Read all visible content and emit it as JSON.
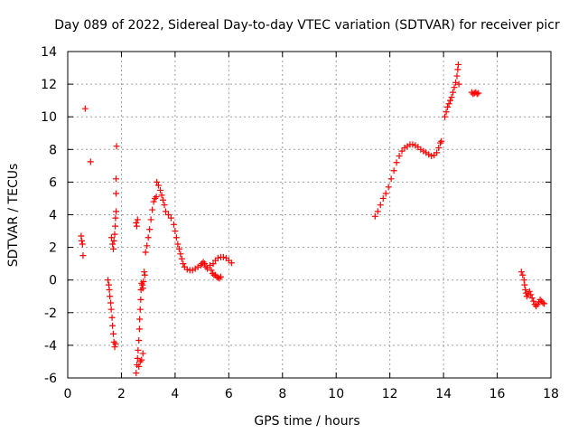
{
  "chart_data": {
    "type": "scatter",
    "title": "Day 089 of 2022, Sidereal Day-to-day VTEC variation (SDTVAR) for receiver picr",
    "xlabel": "GPS time / hours",
    "ylabel": "SDTVAR / TECUs",
    "xlim": [
      0,
      18
    ],
    "ylim": [
      -6,
      14
    ],
    "xticks": [
      0,
      2,
      4,
      6,
      8,
      10,
      12,
      14,
      16,
      18
    ],
    "yticks": [
      -6,
      -4,
      -2,
      0,
      2,
      4,
      6,
      8,
      10,
      12,
      14
    ],
    "grid": true,
    "marker": "+",
    "marker_color": "#ff0000",
    "series": [
      {
        "name": "SDTVAR",
        "points": [
          [
            0.5,
            2.7
          ],
          [
            0.52,
            2.4
          ],
          [
            0.55,
            2.2
          ],
          [
            0.57,
            1.5
          ],
          [
            0.65,
            10.5
          ],
          [
            0.85,
            7.25
          ],
          [
            1.5,
            0.0
          ],
          [
            1.53,
            -0.3
          ],
          [
            1.55,
            -0.6
          ],
          [
            1.57,
            -1.0
          ],
          [
            1.6,
            -1.4
          ],
          [
            1.62,
            -1.8
          ],
          [
            1.65,
            -2.3
          ],
          [
            1.67,
            -2.8
          ],
          [
            1.7,
            -3.3
          ],
          [
            1.72,
            -3.8
          ],
          [
            1.75,
            -4.1
          ],
          [
            1.78,
            -3.9
          ],
          [
            1.63,
            2.6
          ],
          [
            1.67,
            2.2
          ],
          [
            1.7,
            1.9
          ],
          [
            1.72,
            2.4
          ],
          [
            1.75,
            2.8
          ],
          [
            1.77,
            3.3
          ],
          [
            1.78,
            3.8
          ],
          [
            1.8,
            4.2
          ],
          [
            1.8,
            5.3
          ],
          [
            1.8,
            6.2
          ],
          [
            1.82,
            8.2
          ],
          [
            2.55,
            3.5
          ],
          [
            2.57,
            3.3
          ],
          [
            2.6,
            3.7
          ],
          [
            2.55,
            -5.7
          ],
          [
            2.58,
            -5.2
          ],
          [
            2.6,
            -4.8
          ],
          [
            2.62,
            -4.3
          ],
          [
            2.65,
            -3.7
          ],
          [
            2.67,
            -3.0
          ],
          [
            2.68,
            -2.4
          ],
          [
            2.7,
            -1.8
          ],
          [
            2.72,
            -1.2
          ],
          [
            2.73,
            -0.6
          ],
          [
            2.75,
            -0.2
          ],
          [
            2.78,
            -0.3
          ],
          [
            2.8,
            -0.5
          ],
          [
            2.82,
            -0.1
          ],
          [
            2.65,
            -5.3
          ],
          [
            2.7,
            -5.0
          ],
          [
            2.75,
            -4.9
          ],
          [
            2.8,
            -4.5
          ],
          [
            2.85,
            0.5
          ],
          [
            2.87,
            0.3
          ],
          [
            2.9,
            1.7
          ],
          [
            2.95,
            2.1
          ],
          [
            3.0,
            2.6
          ],
          [
            3.05,
            3.1
          ],
          [
            3.1,
            3.7
          ],
          [
            3.15,
            4.3
          ],
          [
            3.2,
            4.8
          ],
          [
            3.25,
            5.0
          ],
          [
            3.3,
            5.1
          ],
          [
            3.32,
            6.0
          ],
          [
            3.38,
            5.8
          ],
          [
            3.45,
            5.5
          ],
          [
            3.5,
            5.2
          ],
          [
            3.55,
            4.9
          ],
          [
            3.6,
            4.6
          ],
          [
            3.65,
            4.2
          ],
          [
            3.75,
            4.0
          ],
          [
            3.85,
            3.8
          ],
          [
            3.95,
            3.4
          ],
          [
            4.0,
            3.0
          ],
          [
            4.05,
            2.6
          ],
          [
            4.1,
            2.2
          ],
          [
            4.15,
            1.9
          ],
          [
            4.2,
            1.6
          ],
          [
            4.25,
            1.3
          ],
          [
            4.3,
            1.0
          ],
          [
            4.35,
            0.8
          ],
          [
            4.45,
            0.65
          ],
          [
            4.55,
            0.6
          ],
          [
            4.65,
            0.6
          ],
          [
            4.75,
            0.7
          ],
          [
            4.85,
            0.8
          ],
          [
            4.95,
            0.9
          ],
          [
            5.0,
            1.0
          ],
          [
            5.05,
            1.1
          ],
          [
            5.1,
            1.0
          ],
          [
            5.15,
            0.8
          ],
          [
            5.2,
            0.7
          ],
          [
            5.3,
            0.9
          ],
          [
            5.35,
            0.6
          ],
          [
            5.4,
            0.4
          ],
          [
            5.45,
            0.3
          ],
          [
            5.5,
            0.3
          ],
          [
            5.55,
            0.2
          ],
          [
            5.6,
            0.15
          ],
          [
            5.65,
            0.1
          ],
          [
            5.7,
            0.2
          ],
          [
            5.42,
            1.0
          ],
          [
            5.5,
            1.2
          ],
          [
            5.6,
            1.35
          ],
          [
            5.7,
            1.4
          ],
          [
            5.8,
            1.4
          ],
          [
            5.9,
            1.35
          ],
          [
            6.0,
            1.2
          ],
          [
            6.1,
            1.05
          ],
          [
            11.45,
            3.9
          ],
          [
            11.55,
            4.2
          ],
          [
            11.65,
            4.6
          ],
          [
            11.75,
            5.0
          ],
          [
            11.85,
            5.3
          ],
          [
            11.95,
            5.7
          ],
          [
            12.05,
            6.2
          ],
          [
            12.15,
            6.7
          ],
          [
            12.25,
            7.2
          ],
          [
            12.35,
            7.6
          ],
          [
            12.45,
            7.9
          ],
          [
            12.55,
            8.1
          ],
          [
            12.65,
            8.2
          ],
          [
            12.75,
            8.3
          ],
          [
            12.85,
            8.3
          ],
          [
            12.95,
            8.25
          ],
          [
            13.05,
            8.15
          ],
          [
            13.15,
            8.0
          ],
          [
            13.25,
            7.9
          ],
          [
            13.35,
            7.8
          ],
          [
            13.45,
            7.7
          ],
          [
            13.55,
            7.6
          ],
          [
            13.65,
            7.65
          ],
          [
            13.75,
            7.8
          ],
          [
            13.82,
            8.1
          ],
          [
            13.88,
            8.4
          ],
          [
            13.92,
            8.5
          ],
          [
            14.05,
            10.0
          ],
          [
            14.1,
            10.3
          ],
          [
            14.15,
            10.6
          ],
          [
            14.2,
            10.8
          ],
          [
            14.25,
            11.0
          ],
          [
            14.3,
            11.2
          ],
          [
            14.35,
            11.5
          ],
          [
            14.4,
            11.8
          ],
          [
            14.45,
            12.1
          ],
          [
            14.5,
            12.5
          ],
          [
            14.53,
            12.9
          ],
          [
            14.55,
            13.2
          ],
          [
            14.57,
            12.0
          ],
          [
            15.05,
            11.5
          ],
          [
            15.1,
            11.4
          ],
          [
            15.15,
            11.45
          ],
          [
            15.2,
            11.5
          ],
          [
            15.25,
            11.4
          ],
          [
            15.3,
            11.45
          ],
          [
            16.9,
            0.5
          ],
          [
            16.95,
            0.3
          ],
          [
            17.0,
            0.0
          ],
          [
            17.02,
            -0.3
          ],
          [
            17.05,
            -0.6
          ],
          [
            17.08,
            -0.8
          ],
          [
            17.1,
            -1.0
          ],
          [
            17.15,
            -0.9
          ],
          [
            17.2,
            -0.7
          ],
          [
            17.25,
            -0.9
          ],
          [
            17.3,
            -1.1
          ],
          [
            17.35,
            -1.3
          ],
          [
            17.4,
            -1.5
          ],
          [
            17.45,
            -1.6
          ],
          [
            17.5,
            -1.5
          ],
          [
            17.55,
            -1.35
          ],
          [
            17.6,
            -1.2
          ],
          [
            17.65,
            -1.3
          ],
          [
            17.7,
            -1.4
          ],
          [
            17.75,
            -1.45
          ]
        ]
      }
    ]
  }
}
